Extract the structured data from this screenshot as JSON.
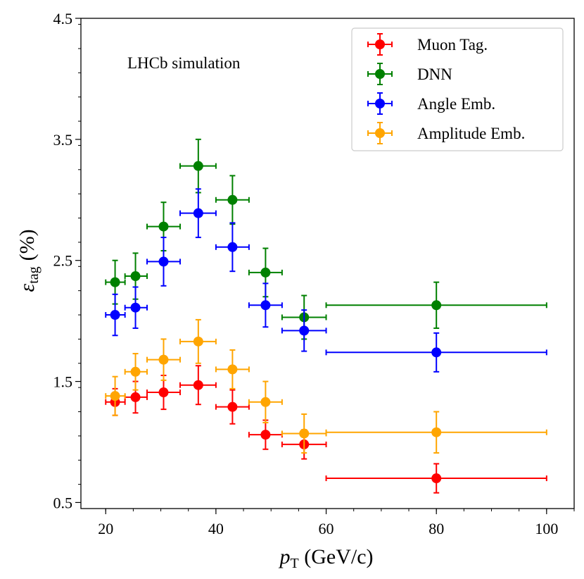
{
  "chart_data": {
    "type": "scatter",
    "title": "",
    "annotation": "LHCb simulation",
    "xlabel": "p_T (GeV/c)",
    "xlabel_parts": {
      "var": "p",
      "sub": "T",
      "rest": " (GeV/c)"
    },
    "ylabel": "ε_tag (%)",
    "ylabel_parts": {
      "var": "ε",
      "sub": "tag",
      "rest": "(%)"
    },
    "xlim": [
      15.5,
      105
    ],
    "ylim": [
      0.45,
      4.5
    ],
    "xticks": [
      20,
      40,
      60,
      80,
      100
    ],
    "xtick_labels": [
      "20",
      "40",
      "60",
      "80",
      "100"
    ],
    "yticks": [
      0.5,
      1.5,
      2.5,
      3.5,
      4.5
    ],
    "ytick_labels": [
      "0.5",
      "1.5",
      "2.5",
      "3.5",
      "4.5"
    ],
    "x_minor_step": 5,
    "y_minor_step": 0.2,
    "legend_location": "top-right",
    "series": [
      {
        "name": "Muon Tag.",
        "color": "#ff0000",
        "points": [
          {
            "x": 21.7,
            "y": 1.33,
            "xlo": 20.0,
            "xhi": 23.5,
            "yerr": 0.11
          },
          {
            "x": 25.4,
            "y": 1.37,
            "xlo": 23.5,
            "xhi": 27.5,
            "yerr": 0.13
          },
          {
            "x": 30.5,
            "y": 1.41,
            "xlo": 27.5,
            "xhi": 33.5,
            "yerr": 0.14
          },
          {
            "x": 36.8,
            "y": 1.47,
            "xlo": 33.5,
            "xhi": 40.0,
            "yerr": 0.16
          },
          {
            "x": 43.0,
            "y": 1.29,
            "xlo": 40.0,
            "xhi": 46.0,
            "yerr": 0.14
          },
          {
            "x": 49.0,
            "y": 1.06,
            "xlo": 46.0,
            "xhi": 52.0,
            "yerr": 0.12
          },
          {
            "x": 56.0,
            "y": 0.98,
            "xlo": 52.0,
            "xhi": 60.0,
            "yerr": 0.12
          },
          {
            "x": 80.0,
            "y": 0.7,
            "xlo": 60.0,
            "xhi": 100.0,
            "yerr": 0.12
          }
        ]
      },
      {
        "name": "DNN",
        "color": "#008000",
        "points": [
          {
            "x": 21.7,
            "y": 2.32,
            "xlo": 20.0,
            "xhi": 23.5,
            "yerr": 0.18
          },
          {
            "x": 25.4,
            "y": 2.37,
            "xlo": 23.5,
            "xhi": 27.5,
            "yerr": 0.19
          },
          {
            "x": 30.5,
            "y": 2.78,
            "xlo": 27.5,
            "xhi": 33.5,
            "yerr": 0.2
          },
          {
            "x": 36.8,
            "y": 3.28,
            "xlo": 33.5,
            "xhi": 40.0,
            "yerr": 0.22
          },
          {
            "x": 43.0,
            "y": 3.0,
            "xlo": 40.0,
            "xhi": 46.0,
            "yerr": 0.2
          },
          {
            "x": 49.0,
            "y": 2.4,
            "xlo": 46.0,
            "xhi": 52.0,
            "yerr": 0.2
          },
          {
            "x": 56.0,
            "y": 2.03,
            "xlo": 52.0,
            "xhi": 60.0,
            "yerr": 0.18
          },
          {
            "x": 80.0,
            "y": 2.13,
            "xlo": 60.0,
            "xhi": 100.0,
            "yerr": 0.19
          }
        ]
      },
      {
        "name": "Angle Emb.",
        "color": "#0000ff",
        "points": [
          {
            "x": 21.7,
            "y": 2.05,
            "xlo": 20.0,
            "xhi": 23.5,
            "yerr": 0.17
          },
          {
            "x": 25.4,
            "y": 2.11,
            "xlo": 23.5,
            "xhi": 27.5,
            "yerr": 0.17
          },
          {
            "x": 30.5,
            "y": 2.49,
            "xlo": 27.5,
            "xhi": 33.5,
            "yerr": 0.2
          },
          {
            "x": 36.8,
            "y": 2.89,
            "xlo": 33.5,
            "xhi": 40.0,
            "yerr": 0.2
          },
          {
            "x": 43.0,
            "y": 2.61,
            "xlo": 40.0,
            "xhi": 46.0,
            "yerr": 0.2
          },
          {
            "x": 49.0,
            "y": 2.13,
            "xlo": 46.0,
            "xhi": 52.0,
            "yerr": 0.18
          },
          {
            "x": 56.0,
            "y": 1.92,
            "xlo": 52.0,
            "xhi": 60.0,
            "yerr": 0.17
          },
          {
            "x": 80.0,
            "y": 1.74,
            "xlo": 60.0,
            "xhi": 100.0,
            "yerr": 0.16
          }
        ]
      },
      {
        "name": "Amplitude Emb.",
        "color": "#ffa500",
        "points": [
          {
            "x": 21.7,
            "y": 1.38,
            "xlo": 20.0,
            "xhi": 23.5,
            "yerr": 0.16
          },
          {
            "x": 25.4,
            "y": 1.58,
            "xlo": 23.5,
            "xhi": 27.5,
            "yerr": 0.15
          },
          {
            "x": 30.5,
            "y": 1.68,
            "xlo": 27.5,
            "xhi": 33.5,
            "yerr": 0.17
          },
          {
            "x": 36.8,
            "y": 1.83,
            "xlo": 33.5,
            "xhi": 40.0,
            "yerr": 0.18
          },
          {
            "x": 43.0,
            "y": 1.6,
            "xlo": 40.0,
            "xhi": 46.0,
            "yerr": 0.16
          },
          {
            "x": 49.0,
            "y": 1.33,
            "xlo": 46.0,
            "xhi": 52.0,
            "yerr": 0.17
          },
          {
            "x": 56.0,
            "y": 1.07,
            "xlo": 52.0,
            "xhi": 60.0,
            "yerr": 0.16
          },
          {
            "x": 80.0,
            "y": 1.08,
            "xlo": 60.0,
            "xhi": 100.0,
            "yerr": 0.17
          }
        ]
      }
    ]
  }
}
